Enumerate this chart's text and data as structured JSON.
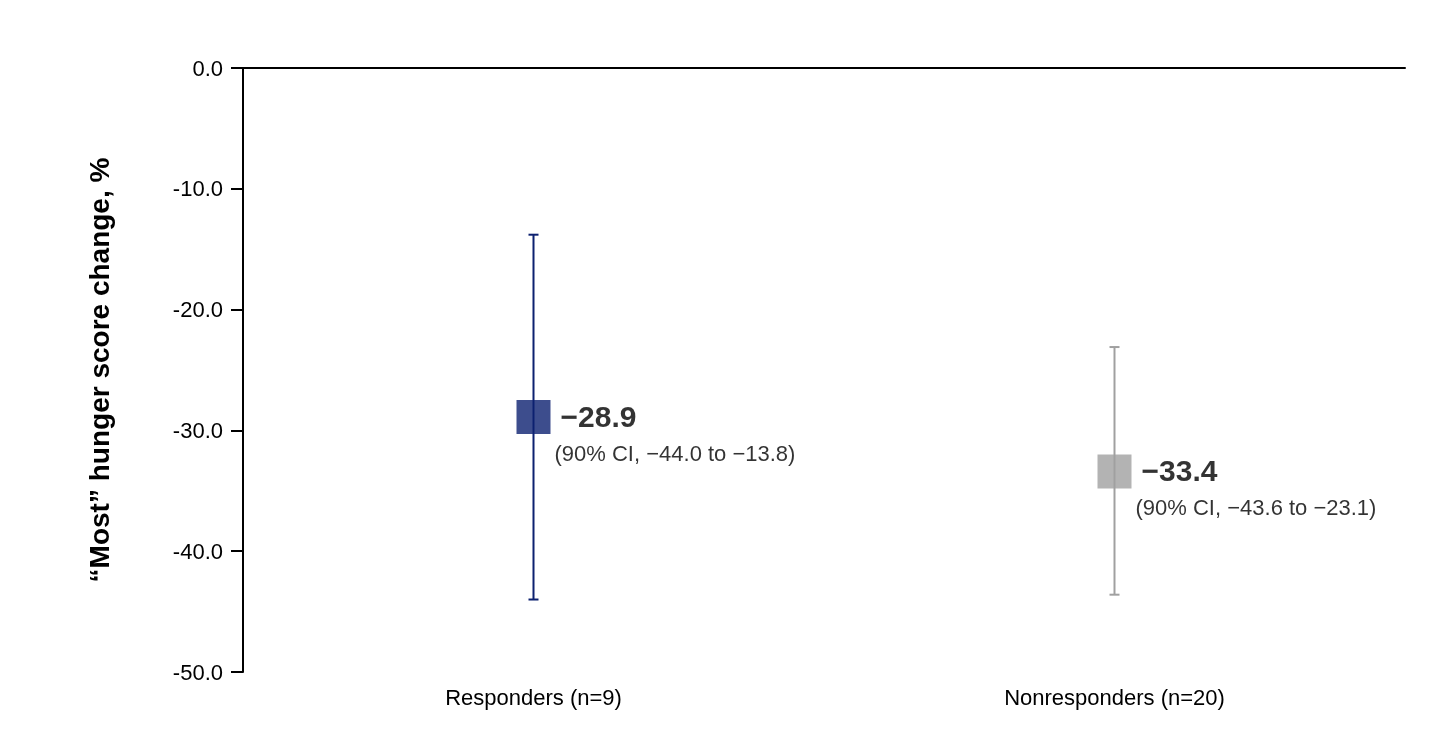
{
  "chart_data": {
    "type": "scatter",
    "ylabel": "“Most” hunger score change, %",
    "categories": [
      "Responders (n=9)",
      "Nonresponders (n=20)"
    ],
    "values": [
      -28.9,
      -33.4
    ],
    "colors": [
      "#0d2170",
      "#a0a0a0"
    ],
    "errors": [
      [
        -44.0,
        -13.8
      ],
      [
        -43.6,
        -23.1
      ]
    ],
    "value_labels": [
      "−28.9",
      "−33.4"
    ],
    "annotations": [
      "(90% CI, −44.0 to −13.8)",
      "(90% CI, −43.6 to −23.1)"
    ],
    "ylim": [
      -50,
      0
    ],
    "yticks": [
      {
        "value": 0,
        "label": "0.0"
      },
      {
        "value": -10,
        "label": "-10.0"
      },
      {
        "value": -20,
        "label": "-20.0"
      },
      {
        "value": -30,
        "label": "-30.0"
      },
      {
        "value": -40,
        "label": "-40.0"
      },
      {
        "value": -50,
        "label": "-50.0"
      }
    ],
    "marker": "square",
    "grid": false
  }
}
